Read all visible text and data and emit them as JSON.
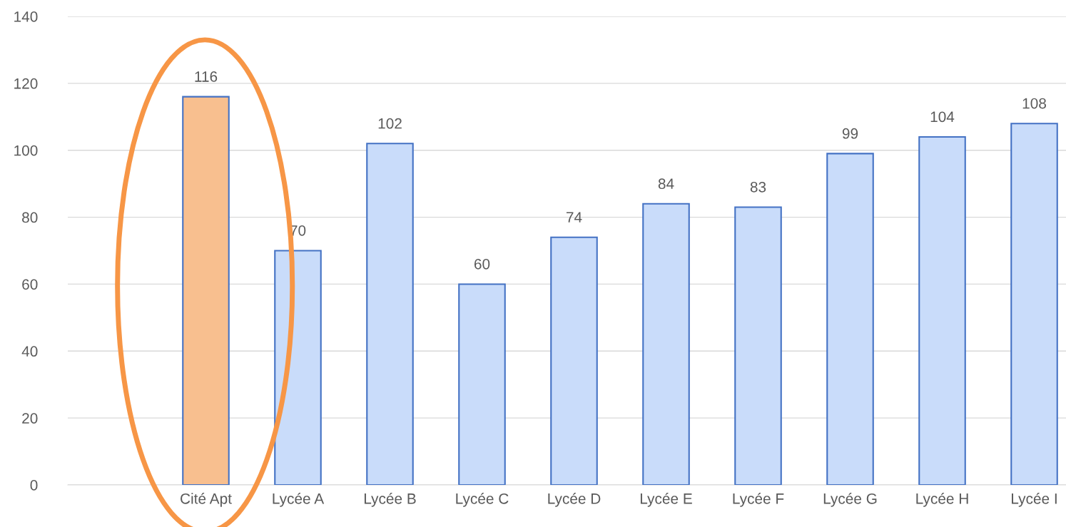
{
  "chart_data": {
    "type": "bar",
    "categories": [
      null,
      "Cité Apt",
      "Lycée A",
      "Lycée B",
      "Lycée C",
      "Lycée D",
      "Lycée E",
      "Lycée F",
      "Lycée G",
      "Lycée H",
      "Lycée I"
    ],
    "values": [
      null,
      116,
      70,
      102,
      60,
      74,
      84,
      83,
      99,
      104,
      108
    ],
    "colors": [
      "#c9dcfa",
      "#f8bf8f",
      "#c9dcfa",
      "#c9dcfa",
      "#c9dcfa",
      "#c9dcfa",
      "#c9dcfa",
      "#c9dcfa",
      "#c9dcfa",
      "#c9dcfa",
      "#c9dcfa"
    ],
    "ylim": [
      0,
      140
    ],
    "yticks": [
      0,
      20,
      40,
      60,
      80,
      100,
      120,
      140
    ],
    "grid": "y",
    "data_labels": true,
    "legend": false
  }
}
